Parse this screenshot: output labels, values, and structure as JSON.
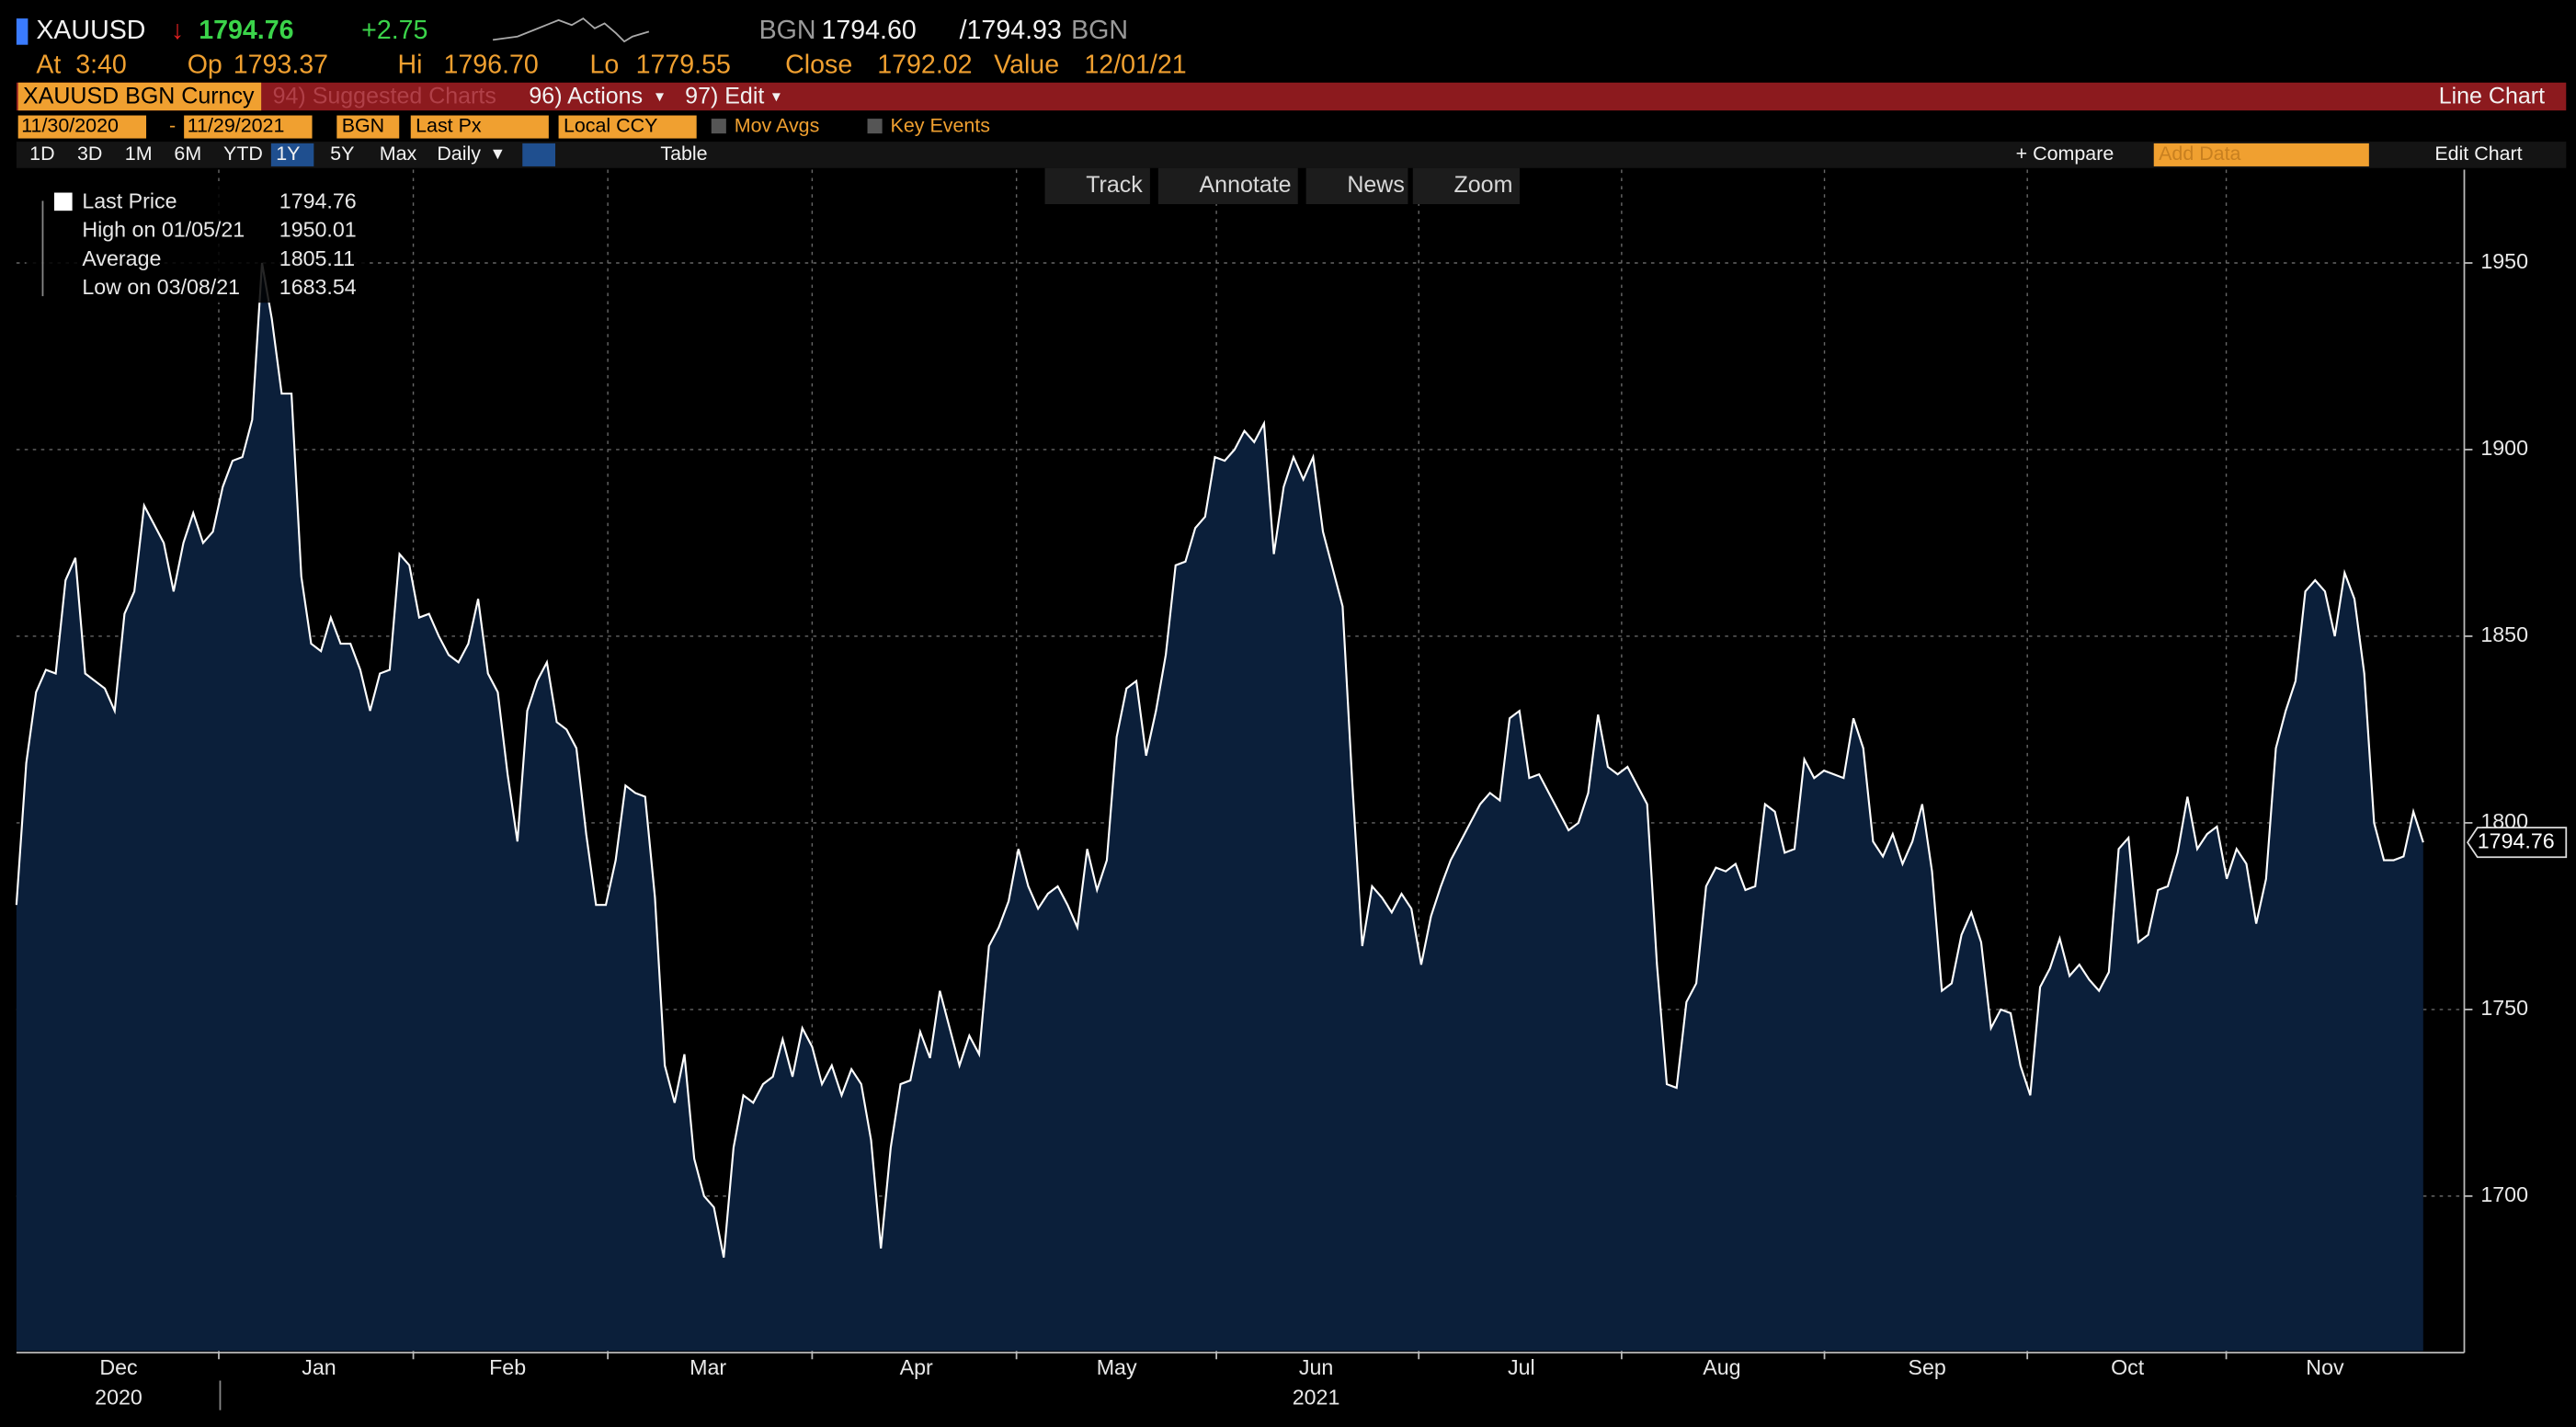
{
  "header": {
    "ticker": "XAUUSD",
    "last": "1794.76",
    "change": "+2.75",
    "bid_src": "BGN",
    "bid": "1794.60",
    "ask": "/1794.93",
    "ask_src": "BGN",
    "at_label": "At",
    "at": "3:40",
    "op_label": "Op",
    "op": "1793.37",
    "hi_label": "Hi",
    "hi": "1796.70",
    "lo_label": "Lo",
    "lo": "1779.55",
    "close_label": "Close",
    "close": "1792.02",
    "value_label": "Value",
    "value_date": "12/01/21"
  },
  "menu": {
    "security": "XAUUSD BGN Curncy",
    "suggested": "94) Suggested Charts",
    "actions": "96) Actions",
    "edit": "97) Edit",
    "chart_kind": "Line Chart"
  },
  "controls": {
    "start": "11/30/2020",
    "dash": "-",
    "end": "11/29/2021",
    "source": "BGN",
    "field": "Last Px",
    "currency": "Local CCY",
    "mov_avgs": "Mov Avgs",
    "key_events": "Key Events"
  },
  "periods": [
    "1D",
    "3D",
    "1M",
    "6M",
    "YTD",
    "1Y",
    "5Y",
    "Max"
  ],
  "toolbar": {
    "frequency": "Daily",
    "table": "Table",
    "compare": "+ Compare",
    "add_data": "Add Data",
    "edit_chart": "Edit Chart"
  },
  "tools": [
    "Track",
    "Annotate",
    "News",
    "Zoom"
  ],
  "chart_data": {
    "type": "area",
    "color": "#ffffff",
    "fill": "#0b1f3a",
    "grid": true,
    "legend": [
      {
        "label": "Last Price",
        "value": "1794.76"
      },
      {
        "label": "High on 01/05/21",
        "value": "1950.01"
      },
      {
        "label": "Average",
        "value": "1805.11"
      },
      {
        "label": "Low on 03/08/21",
        "value": "1683.54"
      }
    ],
    "values": [
      1778,
      1816,
      1835,
      1841,
      1840,
      1865,
      1871,
      1840,
      1838,
      1836,
      1830,
      1856,
      1862,
      1885,
      1880,
      1875,
      1862,
      1875,
      1883,
      1875,
      1878,
      1890,
      1897,
      1898,
      1908,
      1950.01,
      1935,
      1915,
      1915,
      1866,
      1848,
      1846,
      1855,
      1848,
      1848,
      1841,
      1830,
      1840,
      1841,
      1872,
      1869,
      1855,
      1856,
      1850,
      1845,
      1843,
      1848,
      1860,
      1840,
      1835,
      1813,
      1795,
      1830,
      1838,
      1843,
      1827,
      1825,
      1820,
      1797,
      1778,
      1778,
      1790,
      1810,
      1808,
      1807,
      1780,
      1735,
      1725,
      1738,
      1710,
      1700,
      1697,
      1683.54,
      1713,
      1727,
      1725,
      1730,
      1732,
      1742,
      1732,
      1745,
      1740,
      1730,
      1735,
      1727,
      1734,
      1730,
      1715,
      1686,
      1713,
      1730,
      1731,
      1744,
      1737,
      1755,
      1745,
      1735,
      1743,
      1738,
      1767,
      1772,
      1779,
      1793,
      1783,
      1777,
      1781,
      1783,
      1778,
      1772,
      1793,
      1782,
      1790,
      1823,
      1836,
      1838,
      1818,
      1830,
      1845,
      1869,
      1870,
      1879,
      1882,
      1898,
      1897,
      1900,
      1905,
      1902,
      1907,
      1872,
      1890,
      1898,
      1892,
      1898,
      1878,
      1868,
      1858,
      1810,
      1767,
      1783,
      1780,
      1776,
      1781,
      1777,
      1762,
      1775,
      1783,
      1790,
      1795,
      1800,
      1805,
      1808,
      1806,
      1828,
      1830,
      1812,
      1813,
      1808,
      1803,
      1798,
      1800,
      1808,
      1829,
      1815,
      1813,
      1815,
      1810,
      1805,
      1762,
      1730,
      1729,
      1752,
      1757,
      1783,
      1788,
      1787,
      1789,
      1782,
      1783,
      1805,
      1803,
      1792,
      1793,
      1817,
      1812,
      1814,
      1813,
      1812,
      1828,
      1820,
      1795,
      1791,
      1797,
      1789,
      1795,
      1805,
      1787,
      1755,
      1757,
      1770,
      1776,
      1768,
      1745,
      1750,
      1749,
      1735,
      1727,
      1756,
      1761,
      1769,
      1759,
      1762,
      1758,
      1755,
      1760,
      1793,
      1796,
      1768,
      1770,
      1782,
      1783,
      1792,
      1807,
      1793,
      1797,
      1799,
      1785,
      1793,
      1789,
      1773,
      1785,
      1820,
      1830,
      1838,
      1862,
      1865,
      1862,
      1850,
      1867,
      1860,
      1840,
      1800,
      1790,
      1790,
      1791,
      1803,
      1794.76
    ],
    "ylim": [
      1658.5,
      1975
    ],
    "yticks": [
      1700,
      1750,
      1800,
      1850,
      1900,
      1950
    ],
    "xticks": [
      {
        "value": 10.4,
        "label": "Dec"
      },
      {
        "value": 30.8,
        "label": "Jan"
      },
      {
        "value": 50,
        "label": "Feb"
      },
      {
        "value": 70.4,
        "label": "Mar"
      },
      {
        "value": 91.6,
        "label": "Apr"
      },
      {
        "value": 112,
        "label": "May"
      },
      {
        "value": 132.3,
        "label": "Jun"
      },
      {
        "value": 153.2,
        "label": "Jul"
      },
      {
        "value": 173.6,
        "label": "Aug"
      },
      {
        "value": 194.5,
        "label": "Sep"
      },
      {
        "value": 214.9,
        "label": "Oct"
      },
      {
        "value": 235,
        "label": "Nov"
      }
    ],
    "year_labels": [
      {
        "value": 10.4,
        "label": "2020"
      },
      {
        "value": 132.3,
        "label": "2021"
      }
    ]
  }
}
